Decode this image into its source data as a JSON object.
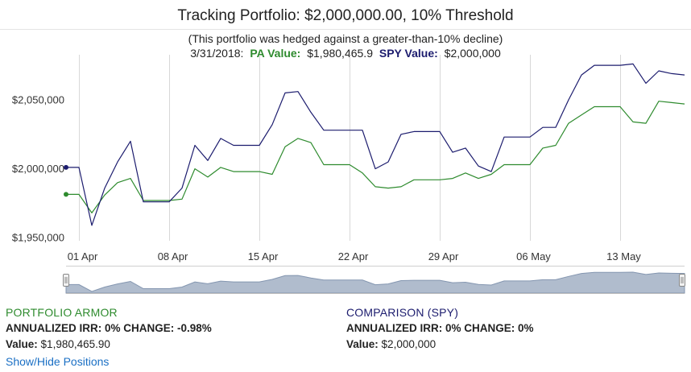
{
  "header": {
    "title": "Tracking Portfolio: $2,000,000.00, 10% Threshold",
    "subtitle": "(This portfolio was hedged against a greater-than-10% decline)",
    "date": "3/31/2018:",
    "pa_label": "PA Value:",
    "pa_value": "$1,980,465.9",
    "spy_label": "SPY Value:",
    "spy_value": "$2,000,000"
  },
  "colors": {
    "pa": "#2e8b2e",
    "spy": "#1c1c6e",
    "grid": "#d8d8d8",
    "navigator_fill": "#b0bccd",
    "navigator_line": "#8496b0"
  },
  "chart_data": {
    "type": "line",
    "title": "Tracking Portfolio: $2,000,000.00, 10% Threshold",
    "x": [
      "31 Mar",
      "01 Apr",
      "02 Apr",
      "03 Apr",
      "04 Apr",
      "05 Apr",
      "06 Apr",
      "07 Apr",
      "08 Apr",
      "09 Apr",
      "10 Apr",
      "11 Apr",
      "12 Apr",
      "13 Apr",
      "14 Apr",
      "15 Apr",
      "16 Apr",
      "17 Apr",
      "18 Apr",
      "19 Apr",
      "20 Apr",
      "21 Apr",
      "22 Apr",
      "23 Apr",
      "24 Apr",
      "25 Apr",
      "26 Apr",
      "27 Apr",
      "28 Apr",
      "29 Apr",
      "30 Apr",
      "01 May",
      "02 May",
      "03 May",
      "04 May",
      "05 May",
      "06 May",
      "07 May",
      "08 May",
      "09 May",
      "10 May",
      "11 May",
      "12 May",
      "13 May",
      "14 May",
      "15 May",
      "16 May",
      "17 May",
      "18 May"
    ],
    "x_tick_labels": [
      "01 Apr",
      "08 Apr",
      "15 Apr",
      "22 Apr",
      "29 Apr",
      "06 May",
      "13 May"
    ],
    "y_tick_labels": [
      "$1,950,000",
      "$2,000,000",
      "$2,050,000"
    ],
    "y_ticks": [
      1950000,
      2000000,
      2050000
    ],
    "ylim": [
      1948000,
      2077000
    ],
    "xlabel": "",
    "ylabel": "",
    "series": [
      {
        "name": "PORTFOLIO ARMOR",
        "color": "#2e8b2e",
        "values": [
          1980466,
          1980466,
          1967000,
          1980000,
          1989000,
          1992000,
          1976000,
          1976000,
          1976000,
          1977000,
          1999000,
          1993000,
          2000000,
          1997000,
          1997000,
          1997000,
          1995000,
          2015000,
          2021000,
          2018000,
          2002000,
          2002000,
          2002000,
          1996000,
          1986000,
          1985000,
          1986000,
          1991000,
          1991000,
          1991000,
          1992000,
          1996000,
          1992000,
          1995000,
          2002000,
          2002000,
          2002000,
          2014000,
          2016000,
          2032000,
          2038000,
          2044000,
          2044000,
          2044000,
          2033000,
          2032000,
          2048000,
          2047000,
          2046000
        ]
      },
      {
        "name": "COMPARISON (SPY)",
        "color": "#1c1c6e",
        "values": [
          2000000,
          2000000,
          1958000,
          1985000,
          2004000,
          2019000,
          1975000,
          1975000,
          1975000,
          1985000,
          2016000,
          2005000,
          2021000,
          2016000,
          2016000,
          2016000,
          2031000,
          2054000,
          2055000,
          2040000,
          2027000,
          2027000,
          2027000,
          2027000,
          1999000,
          2004000,
          2024000,
          2026000,
          2026000,
          2026000,
          2011000,
          2014000,
          2001000,
          1997000,
          2022000,
          2022000,
          2022000,
          2029000,
          2029000,
          2049000,
          2067000,
          2074000,
          2074000,
          2074000,
          2075000,
          2061000,
          2070000,
          2068000,
          2067000
        ]
      }
    ]
  },
  "pa_info": {
    "name": "PORTFOLIO ARMOR",
    "line2": "ANNUALIZED IRR: 0% CHANGE: -0.98%",
    "value_label": "Value:",
    "value": "$1,980,465.90"
  },
  "spy_info": {
    "name": "COMPARISON (SPY)",
    "line2": "ANNUALIZED IRR: 0% CHANGE: 0%",
    "value_label": "Value:",
    "value": "$2,000,000"
  },
  "toggle_label": "Show/Hide Positions"
}
